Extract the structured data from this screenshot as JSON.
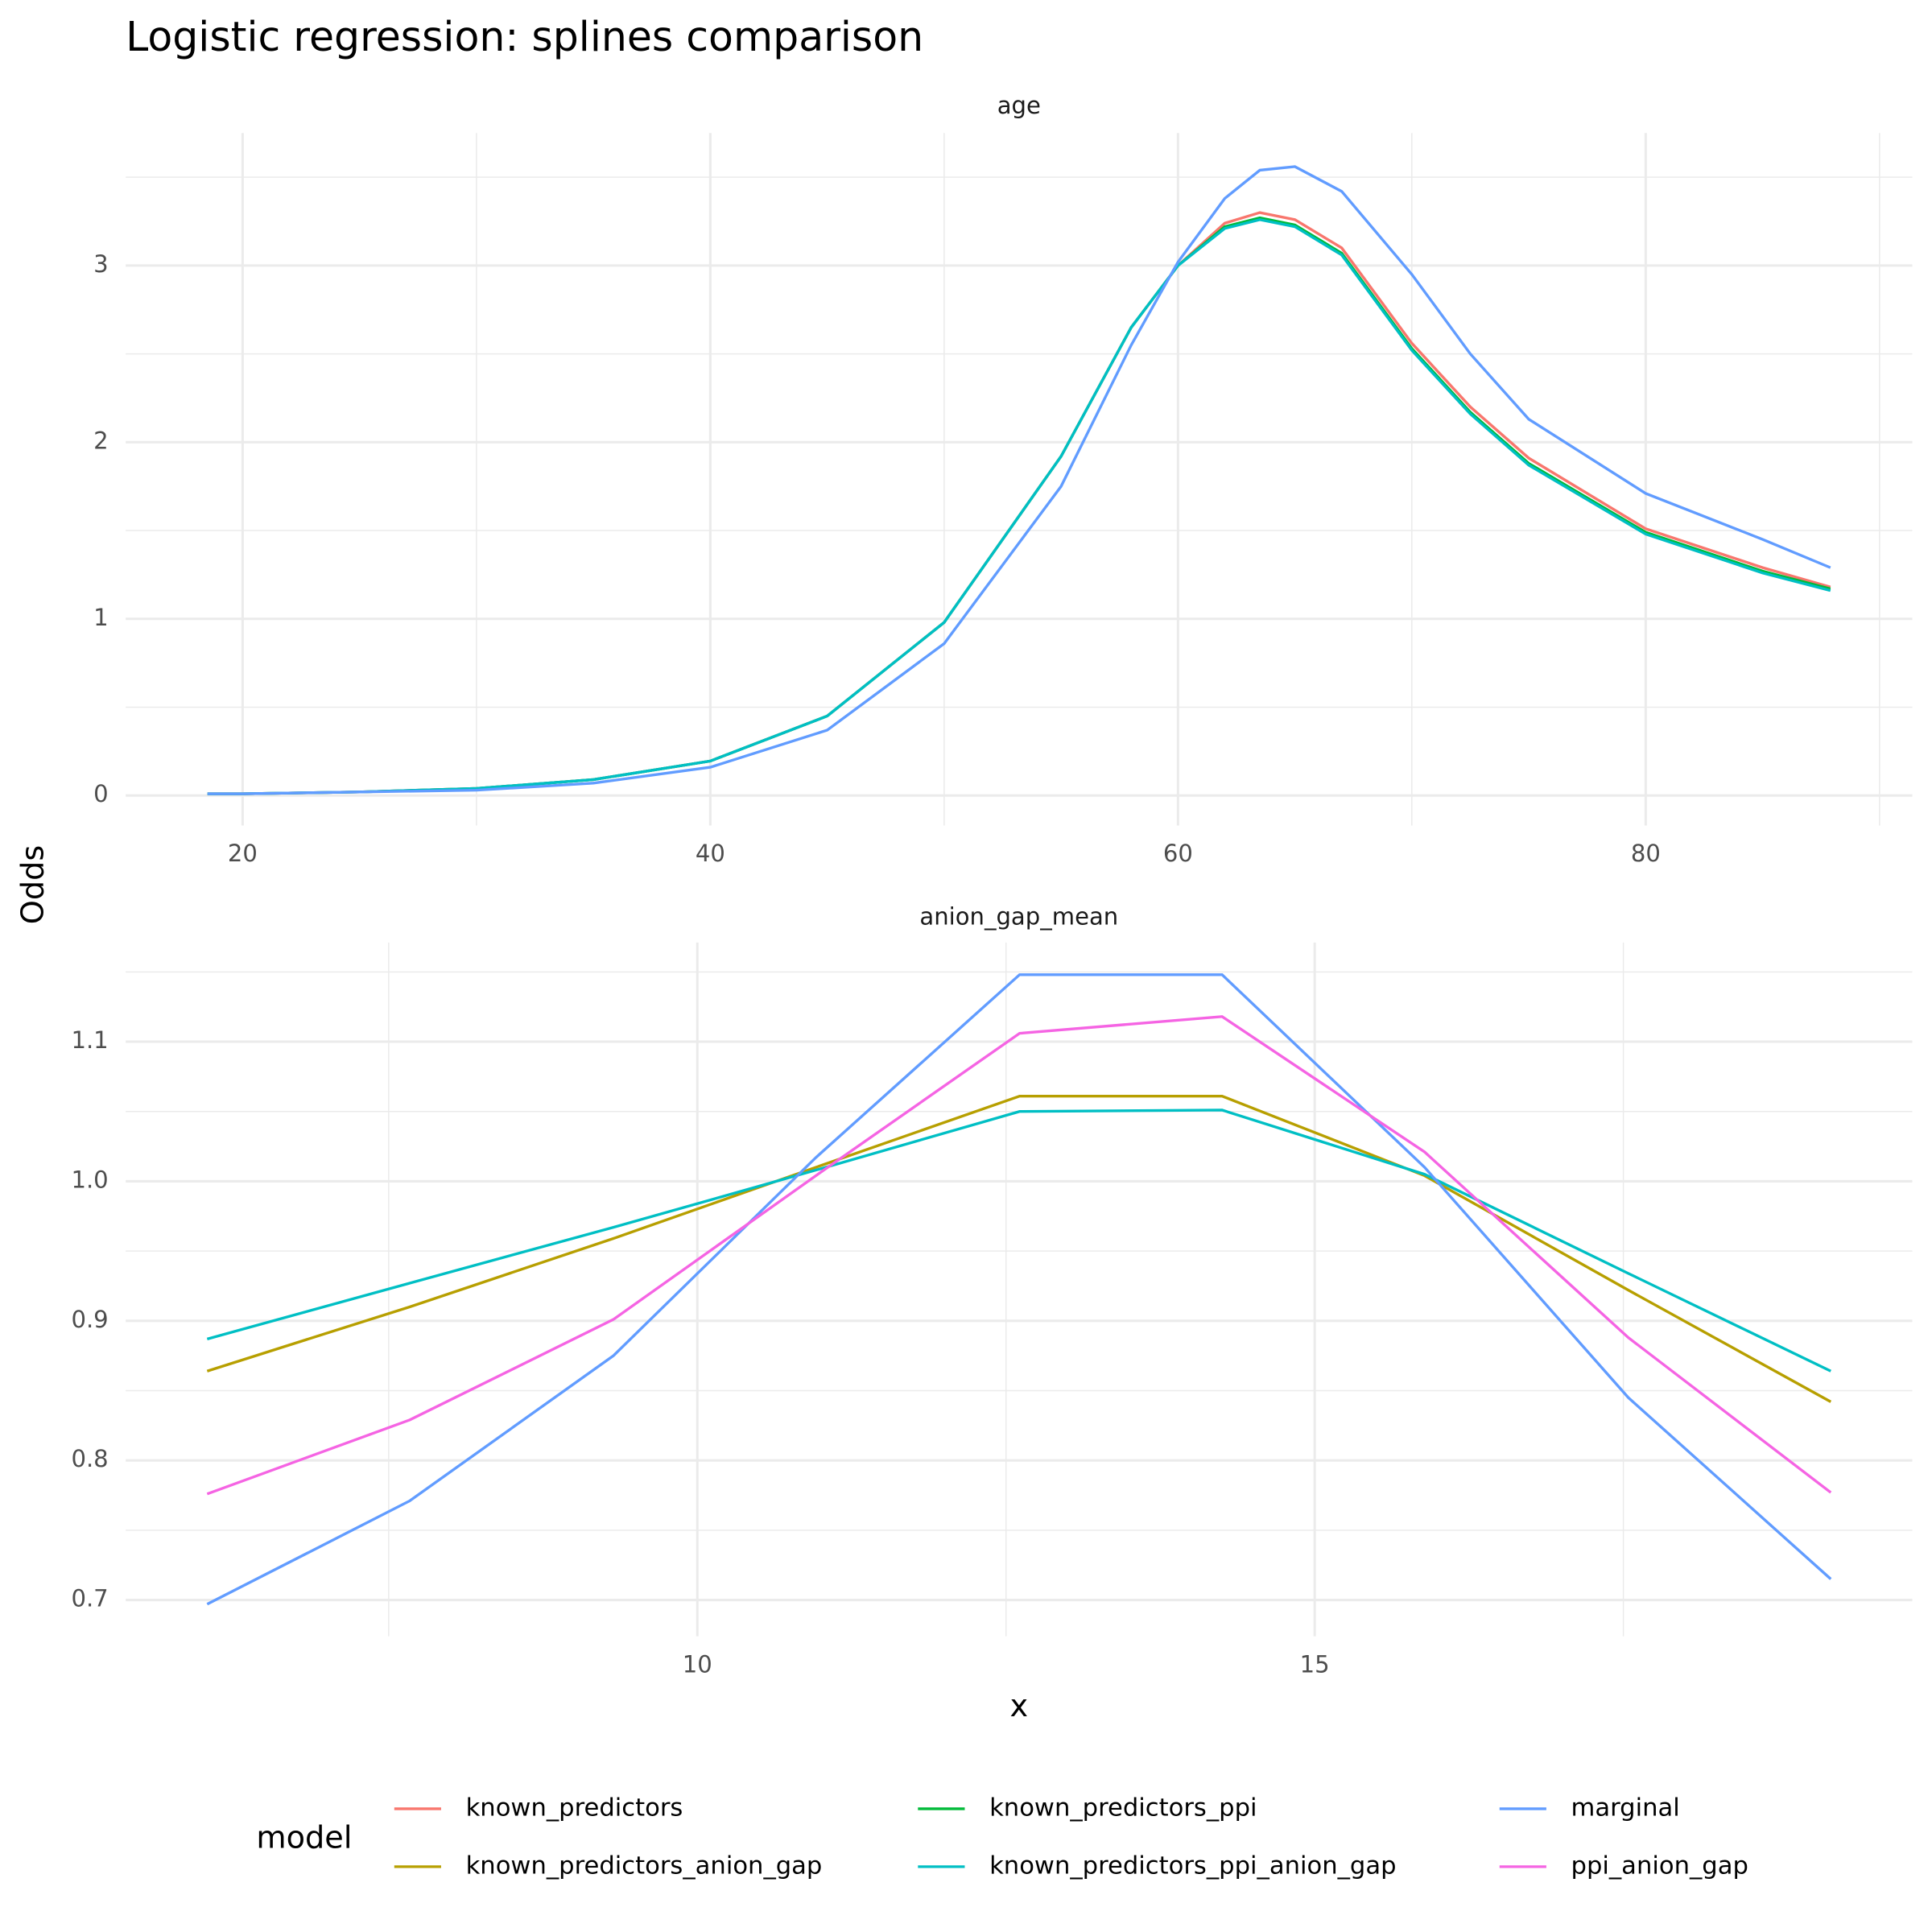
{
  "title": "Logistic regression: splines comparison",
  "y_label": "Odds",
  "x_label": "x",
  "legend": {
    "title": "model",
    "entries": [
      {
        "name": "known_predictors",
        "color": "#F8766D"
      },
      {
        "name": "known_predictors_anion_gap",
        "color": "#B79F00"
      },
      {
        "name": "known_predictors_ppi",
        "color": "#00BA38"
      },
      {
        "name": "known_predictors_ppi_anion_gap",
        "color": "#00BFC4"
      },
      {
        "name": "marginal",
        "color": "#619CFF"
      },
      {
        "name": "ppi_anion_gap",
        "color": "#F564E3"
      }
    ]
  },
  "chart_data": [
    {
      "type": "line",
      "title": "age",
      "x": [
        18.5,
        20,
        25,
        30,
        35,
        40,
        45,
        50,
        55,
        58,
        60,
        62,
        63.5,
        65,
        67,
        70,
        72.5,
        75,
        80,
        85,
        87.9
      ],
      "series": [
        {
          "name": "known_predictors",
          "color": "#F8766D",
          "values": [
            0.01,
            0.01,
            0.02,
            0.04,
            0.09,
            0.195,
            0.45,
            0.98,
            1.92,
            2.65,
            3.0,
            3.24,
            3.3,
            3.26,
            3.1,
            2.56,
            2.2,
            1.91,
            1.51,
            1.29,
            1.18
          ]
        },
        {
          "name": "known_predictors_ppi",
          "color": "#00BA38",
          "values": [
            0.01,
            0.01,
            0.02,
            0.04,
            0.09,
            0.195,
            0.45,
            0.98,
            1.92,
            2.65,
            3.0,
            3.22,
            3.27,
            3.23,
            3.07,
            2.53,
            2.17,
            1.88,
            1.49,
            1.27,
            1.17
          ]
        },
        {
          "name": "known_predictors_ppi_anion_gap",
          "color": "#00BFC4",
          "values": [
            0.01,
            0.01,
            0.02,
            0.04,
            0.09,
            0.195,
            0.45,
            0.98,
            1.92,
            2.65,
            3.0,
            3.21,
            3.26,
            3.22,
            3.06,
            2.52,
            2.16,
            1.87,
            1.48,
            1.26,
            1.16
          ]
        },
        {
          "name": "marginal",
          "color": "#619CFF",
          "values": [
            0.01,
            0.01,
            0.02,
            0.03,
            0.07,
            0.16,
            0.37,
            0.86,
            1.75,
            2.55,
            3.02,
            3.38,
            3.54,
            3.56,
            3.42,
            2.95,
            2.5,
            2.13,
            1.71,
            1.45,
            1.29
          ]
        }
      ],
      "xlim": [
        15.0,
        91.4
      ],
      "xticks": [
        20,
        40,
        60,
        80
      ],
      "ylim": [
        -0.17,
        3.75
      ],
      "yticks": [
        0,
        1,
        2,
        3
      ],
      "grid": true
    },
    {
      "type": "line",
      "title": "anion_gap_mean",
      "x": [
        6.03,
        7.67,
        9.32,
        10.96,
        12.61,
        14.25,
        15.89,
        17.54,
        19.18
      ],
      "series": [
        {
          "name": "known_predictors_anion_gap",
          "color": "#B79F00",
          "values": [
            0.864,
            0.91,
            0.959,
            1.01,
            1.061,
            1.061,
            1.004,
            0.922,
            0.842
          ]
        },
        {
          "name": "known_predictors_ppi_anion_gap",
          "color": "#00BFC4",
          "values": [
            0.887,
            0.927,
            0.967,
            1.008,
            1.05,
            1.051,
            1.005,
            0.934,
            0.864
          ]
        },
        {
          "name": "marginal",
          "color": "#619CFF",
          "values": [
            0.697,
            0.771,
            0.875,
            1.017,
            1.148,
            1.148,
            1.01,
            0.845,
            0.715
          ]
        },
        {
          "name": "ppi_anion_gap",
          "color": "#F564E3",
          "values": [
            0.776,
            0.829,
            0.901,
            1.004,
            1.106,
            1.118,
            1.021,
            0.888,
            0.777
          ]
        }
      ],
      "xlim": [
        5.37,
        19.84
      ],
      "xticks": [
        10,
        15
      ],
      "ylim": [
        0.674,
        1.171
      ],
      "yticks": [
        0.7,
        0.8,
        0.9,
        {
          "value": 1,
          "label": "1.0"
        },
        1.1
      ],
      "grid": true
    }
  ]
}
